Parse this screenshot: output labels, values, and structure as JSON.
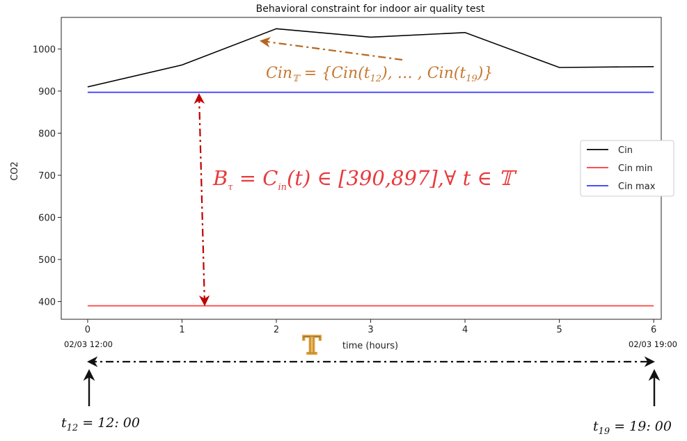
{
  "chart_data": {
    "type": "line",
    "title": "Behavioral constraint for indoor air quality test",
    "xlabel": "time (hours)",
    "ylabel": "CO2",
    "xlim": [
      -0.28,
      6.08
    ],
    "ylim": [
      358,
      1075
    ],
    "x_ticks": [
      0,
      1,
      2,
      3,
      4,
      5,
      6
    ],
    "x_tick_labels": [
      "0",
      "1",
      "2",
      "3",
      "4",
      "5",
      "6"
    ],
    "y_ticks": [
      400,
      500,
      600,
      700,
      800,
      900,
      1000
    ],
    "y_tick_labels": [
      "400",
      "500",
      "600",
      "700",
      "800",
      "900",
      "1000"
    ],
    "legend_position": "center-right",
    "grid": false,
    "series": [
      {
        "name": "Cin",
        "color": "#000000",
        "x": [
          0,
          1,
          2,
          3,
          4,
          5,
          6
        ],
        "y": [
          910,
          962,
          1048,
          1028,
          1039,
          956,
          958
        ]
      },
      {
        "name": "Cin min",
        "color": "#ff0000",
        "x": [
          0,
          6
        ],
        "y": [
          390,
          390
        ]
      },
      {
        "name": "Cin max",
        "color": "#0000ff",
        "x": [
          0,
          6
        ],
        "y": [
          897,
          897
        ]
      }
    ],
    "annotations": {
      "start_date": "02/03 12:00",
      "end_date": "02/03 19:00",
      "period_symbol": "𝕋",
      "cin_set": {
        "base": "Cin",
        "sub": "𝕋",
        "mid": " = {Cin(t",
        "sub1": "12",
        "mid2": "), … , Cin(t",
        "sub2": "19",
        "end": ")}"
      },
      "constraint": {
        "base": "B",
        "sub": "τ",
        "mid": " = C",
        "sub2": "in",
        "end": "(t) ∈ [390,897],∀ t ∈ 𝕋"
      },
      "t_start": {
        "base": "t",
        "sub": "12",
        "end": " = 12: 00"
      },
      "t_end": {
        "base": "t",
        "sub": "19",
        "end": " = 19: 00"
      },
      "colors": {
        "orange": "#c5772e",
        "red": "#e8393c",
        "darkred": "#c00000",
        "dark": "#111111"
      }
    }
  }
}
